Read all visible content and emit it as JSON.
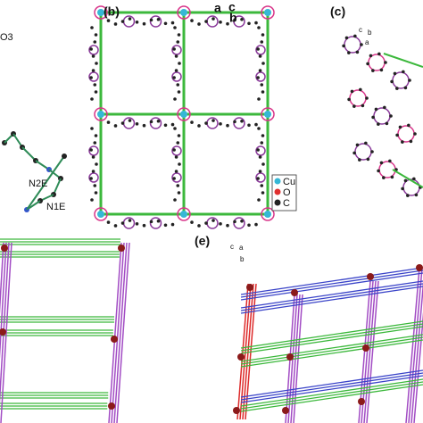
{
  "panels": [
    {
      "label": "(b)"
    },
    {
      "label": "(c)"
    },
    {
      "label": "(e)"
    }
  ],
  "atom_labels": [
    "O3",
    "N2E",
    "N1E"
  ],
  "axes_b": [
    "a",
    "c",
    "b"
  ],
  "legend": [
    "Cu",
    "O",
    "C"
  ],
  "axes_c": [
    "c",
    "b",
    "a"
  ],
  "axes_e": [
    "c",
    "a",
    "b"
  ]
}
